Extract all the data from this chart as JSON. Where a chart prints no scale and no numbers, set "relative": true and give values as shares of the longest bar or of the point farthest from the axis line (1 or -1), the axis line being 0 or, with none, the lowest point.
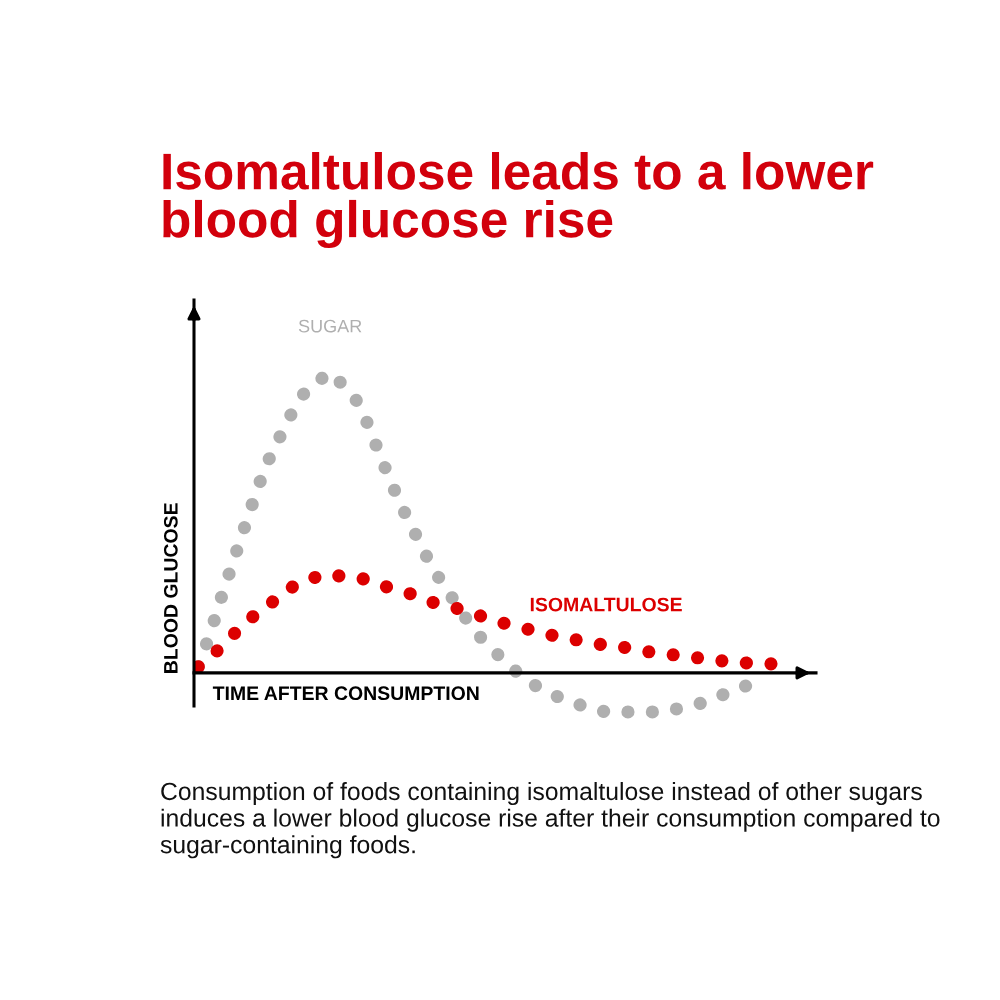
{
  "chart_data": {
    "type": "line",
    "title": "Isomaltulose leads to a lower blood glucose rise",
    "xlabel": "TIME AFTER CONSUMPTION",
    "ylabel": "BLOOD GLUCOSE",
    "annotations": [
      "Consumption of foods containing isomaltulose instead of other sugars induces a lower blood glucose rise after their consumption compared to sugar-containing foods."
    ],
    "relative": true,
    "line_style": "dotted",
    "categories": [
      null,
      null,
      null,
      null,
      null,
      null,
      null,
      null,
      null,
      null,
      null,
      null,
      null,
      null,
      null,
      null,
      null,
      null,
      null,
      null,
      null,
      null,
      null,
      null,
      null,
      null,
      null,
      null,
      null,
      null,
      null,
      null,
      null,
      null,
      null,
      null,
      null,
      null,
      null,
      null,
      null,
      null,
      null,
      null,
      null,
      null,
      null,
      null,
      null
    ],
    "series": [
      {
        "name": "SUGAR",
        "color": "#afafaf",
        "values": [
          0.02,
          0.13,
          0.26,
          0.38,
          0.5,
          0.62,
          0.72,
          0.8,
          0.88,
          0.94,
          0.97,
          1.0,
          0.96,
          0.92,
          0.84,
          0.74,
          0.64,
          0.55,
          0.47,
          0.39,
          0.32,
          0.26,
          0.2,
          0.14,
          0.1,
          0.06,
          0.02,
          -0.01,
          -0.04,
          -0.06,
          -0.08,
          -0.09,
          -0.11,
          -0.12,
          -0.13,
          -0.13,
          -0.13,
          -0.13,
          -0.13,
          -0.12,
          -0.12,
          -0.11,
          -0.1,
          -0.08,
          -0.07,
          -0.05,
          -0.04,
          null,
          null
        ]
      },
      {
        "name": "ISOMALTULOSE",
        "color": "#dc0000",
        "values": [
          0.02,
          0.05,
          0.09,
          0.13,
          0.17,
          0.2,
          0.23,
          0.26,
          0.29,
          0.31,
          0.32,
          0.33,
          0.32,
          0.32,
          0.31,
          0.3,
          0.28,
          0.27,
          0.26,
          0.24,
          0.23,
          0.22,
          0.21,
          0.2,
          0.18,
          0.17,
          0.16,
          0.15,
          0.14,
          0.13,
          0.12,
          0.11,
          0.11,
          0.1,
          0.09,
          0.09,
          0.08,
          0.07,
          0.07,
          0.06,
          0.06,
          0.05,
          0.05,
          0.04,
          0.04,
          0.04,
          0.03,
          0.03,
          0.03
        ]
      }
    ]
  }
}
